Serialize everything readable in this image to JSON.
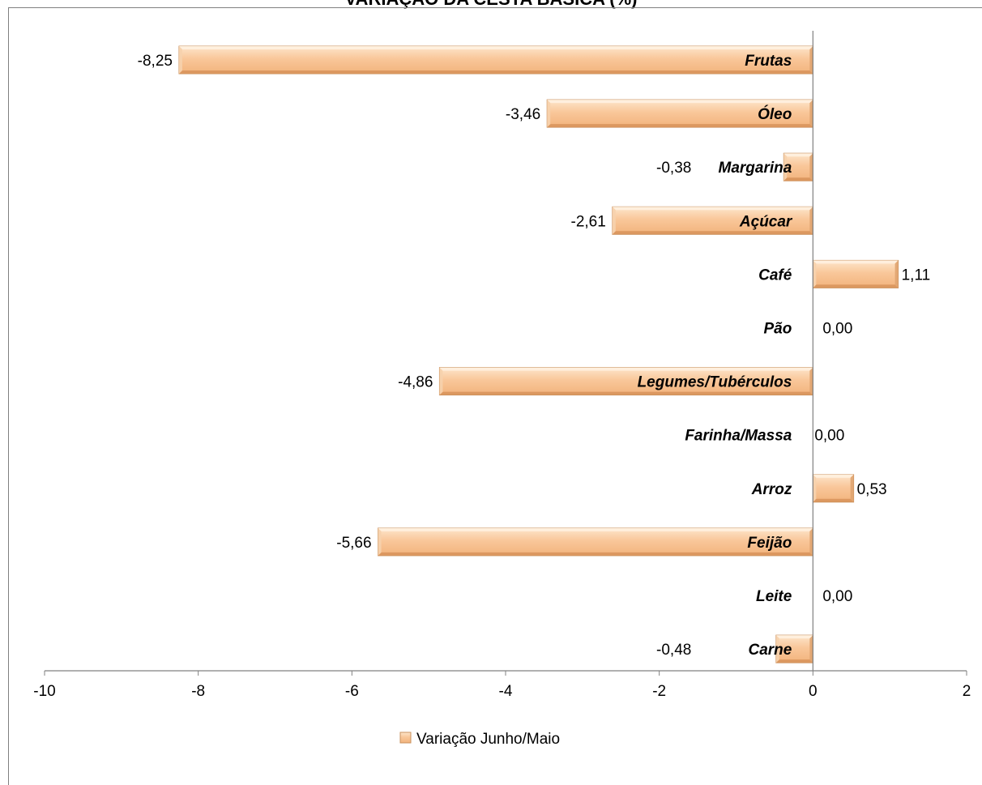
{
  "chart_data": {
    "type": "bar",
    "orientation": "horizontal",
    "title": "VARIAÇÃO DA CESTA BÁSICA (%)",
    "categories": [
      "Frutas",
      "Óleo",
      "Margarina",
      "Açúcar",
      "Café",
      "Pão",
      "Legumes/Tubérculos",
      "Farinha/Massa",
      "Arroz",
      "Feijão",
      "Leite",
      "Carne"
    ],
    "series": [
      {
        "name": "Variação Junho/Maio",
        "values": [
          -8.25,
          -3.46,
          -0.38,
          -2.61,
          1.11,
          0.0,
          -4.86,
          0.0,
          0.53,
          -5.66,
          0.0,
          -0.48
        ],
        "labels": [
          "-8,25",
          "-3,46",
          "-0,38",
          "-2,61",
          "1,11",
          "0,00",
          "-4,86",
          "0,00",
          "0,53",
          "-5,66",
          "0,00",
          "-0,48"
        ]
      }
    ],
    "xlim": [
      -10,
      2
    ],
    "xticks": [
      "-10",
      "-8",
      "-6",
      "-4",
      "-2",
      "0",
      "2"
    ],
    "legend_position": "bottom",
    "colors": {
      "bar_fill": "#f7c08f",
      "bar_light": "#fde3c6",
      "bar_dark": "#d99a62",
      "axis": "#808080"
    }
  }
}
